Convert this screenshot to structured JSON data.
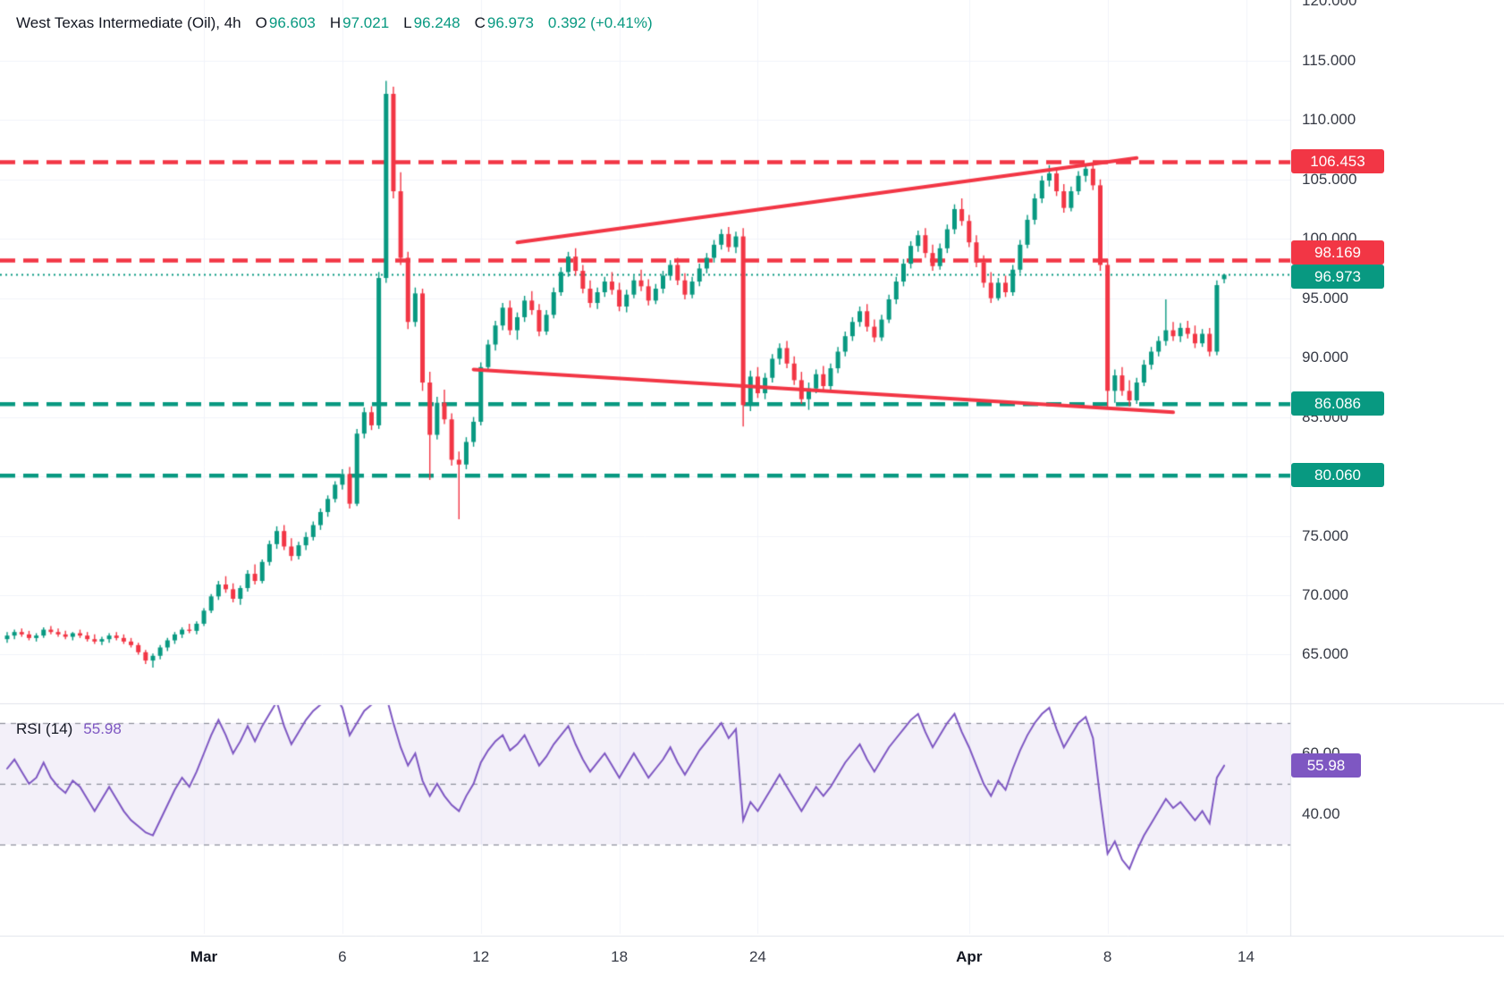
{
  "header": {
    "title": "West Texas Intermediate (Oil), 4h",
    "o_label": "O",
    "open": "96.603",
    "h_label": "H",
    "high": "97.021",
    "l_label": "L",
    "low": "96.248",
    "c_label": "C",
    "close": "96.973",
    "change": "0.392 (+0.41%)"
  },
  "colors": {
    "up": "#089981",
    "down": "#f23645",
    "resistance": "#f23645",
    "support": "#089981",
    "rsi": "#7e57c2",
    "grid": "#f0f3fa",
    "separator": "#e0e3eb",
    "axis_text": "#363a45"
  },
  "chart_data": {
    "type": "candlestick",
    "title": "West Texas Intermediate (Oil), 4h",
    "price_axis": {
      "min": 61.8,
      "max": 120.1,
      "tick_interval": 5,
      "ticks": [
        {
          "value": 120,
          "label": "120.000"
        },
        {
          "value": 115,
          "label": "115.000"
        },
        {
          "value": 110,
          "label": "110.000"
        },
        {
          "value": 105,
          "label": "105.000"
        },
        {
          "value": 100,
          "label": "100.000"
        },
        {
          "value": 95,
          "label": "95.000"
        },
        {
          "value": 90,
          "label": "90.000"
        },
        {
          "value": 85,
          "label": "85.000"
        },
        {
          "value": 80,
          "label": "80.000"
        },
        {
          "value": 75,
          "label": "75.000"
        },
        {
          "value": 70,
          "label": "70.000"
        },
        {
          "value": 65,
          "label": "65.000"
        }
      ]
    },
    "candles": [
      [
        66.3,
        66.9,
        66.0,
        66.6
      ],
      [
        66.6,
        67.1,
        66.3,
        66.9
      ],
      [
        66.9,
        67.2,
        66.5,
        66.7
      ],
      [
        66.7,
        67.0,
        66.2,
        66.4
      ],
      [
        66.4,
        66.8,
        66.1,
        66.6
      ],
      [
        66.6,
        67.3,
        66.4,
        67.1
      ],
      [
        67.1,
        67.4,
        66.7,
        66.9
      ],
      [
        66.9,
        67.2,
        66.5,
        66.7
      ],
      [
        66.7,
        67.0,
        66.3,
        66.5
      ],
      [
        66.5,
        66.9,
        66.2,
        66.8
      ],
      [
        66.8,
        67.1,
        66.4,
        66.6
      ],
      [
        66.6,
        66.9,
        66.1,
        66.3
      ],
      [
        66.3,
        66.7,
        65.9,
        66.1
      ],
      [
        66.1,
        66.5,
        65.8,
        66.3
      ],
      [
        66.3,
        66.8,
        66.0,
        66.6
      ],
      [
        66.6,
        66.9,
        66.2,
        66.4
      ],
      [
        66.4,
        66.7,
        65.9,
        66.1
      ],
      [
        66.1,
        66.4,
        65.6,
        65.8
      ],
      [
        65.8,
        66.0,
        65.0,
        65.2
      ],
      [
        65.2,
        65.4,
        64.2,
        64.5
      ],
      [
        64.5,
        65.1,
        63.9,
        64.9
      ],
      [
        64.9,
        65.8,
        64.6,
        65.6
      ],
      [
        65.6,
        66.4,
        65.3,
        66.2
      ],
      [
        66.2,
        66.9,
        65.9,
        66.7
      ],
      [
        66.7,
        67.3,
        66.4,
        67.1
      ],
      [
        67.1,
        67.6,
        66.8,
        67.0
      ],
      [
        67.0,
        67.8,
        66.7,
        67.6
      ],
      [
        67.6,
        68.9,
        67.4,
        68.7
      ],
      [
        68.7,
        70.1,
        68.5,
        69.9
      ],
      [
        69.9,
        71.2,
        69.6,
        70.9
      ],
      [
        70.9,
        71.6,
        70.2,
        70.5
      ],
      [
        70.5,
        71.0,
        69.4,
        69.7
      ],
      [
        69.7,
        70.8,
        69.2,
        70.6
      ],
      [
        70.6,
        72.1,
        70.3,
        71.8
      ],
      [
        71.8,
        72.6,
        70.9,
        71.2
      ],
      [
        71.2,
        73.0,
        71.0,
        72.8
      ],
      [
        72.8,
        74.6,
        72.5,
        74.3
      ],
      [
        74.3,
        75.8,
        73.9,
        75.4
      ],
      [
        75.4,
        75.9,
        73.8,
        74.1
      ],
      [
        74.1,
        74.8,
        72.9,
        73.3
      ],
      [
        73.3,
        74.5,
        73.0,
        74.2
      ],
      [
        74.2,
        75.3,
        73.8,
        74.9
      ],
      [
        74.9,
        76.2,
        74.6,
        75.9
      ],
      [
        75.9,
        77.3,
        75.5,
        77.0
      ],
      [
        77.0,
        78.4,
        76.6,
        78.1
      ],
      [
        78.1,
        79.6,
        77.8,
        79.3
      ],
      [
        79.3,
        80.6,
        78.9,
        80.2
      ],
      [
        80.2,
        80.8,
        77.3,
        77.7
      ],
      [
        77.7,
        84.0,
        77.5,
        83.6
      ],
      [
        83.6,
        85.8,
        83.2,
        85.4
      ],
      [
        85.4,
        85.9,
        83.9,
        84.3
      ],
      [
        84.3,
        97.2,
        84.0,
        96.7
      ],
      [
        96.7,
        113.3,
        96.3,
        112.2
      ],
      [
        112.2,
        112.8,
        103.4,
        104.0
      ],
      [
        104.0,
        105.6,
        97.8,
        98.4
      ],
      [
        98.4,
        98.9,
        92.4,
        93.0
      ],
      [
        93.0,
        95.9,
        92.6,
        95.4
      ],
      [
        95.4,
        95.8,
        87.2,
        87.9
      ],
      [
        87.9,
        88.8,
        79.7,
        83.5
      ],
      [
        83.5,
        86.7,
        83.1,
        86.2
      ],
      [
        86.2,
        87.3,
        84.4,
        84.8
      ],
      [
        84.8,
        85.3,
        80.9,
        81.4
      ],
      [
        81.4,
        82.1,
        76.4,
        81.0
      ],
      [
        81.0,
        83.3,
        80.6,
        82.9
      ],
      [
        82.9,
        85.0,
        82.5,
        84.6
      ],
      [
        84.6,
        89.6,
        84.3,
        89.2
      ],
      [
        89.2,
        91.5,
        88.8,
        91.1
      ],
      [
        91.1,
        93.1,
        90.6,
        92.7
      ],
      [
        92.7,
        94.6,
        92.3,
        94.2
      ],
      [
        94.2,
        94.8,
        91.9,
        92.3
      ],
      [
        92.3,
        93.8,
        91.5,
        93.4
      ],
      [
        93.4,
        95.2,
        93.0,
        94.8
      ],
      [
        94.8,
        95.6,
        93.6,
        94.0
      ],
      [
        94.0,
        94.5,
        91.8,
        92.2
      ],
      [
        92.2,
        94.0,
        91.9,
        93.6
      ],
      [
        93.6,
        95.9,
        93.3,
        95.5
      ],
      [
        95.5,
        97.6,
        95.2,
        97.2
      ],
      [
        97.2,
        98.9,
        96.8,
        98.5
      ],
      [
        98.5,
        99.2,
        96.9,
        97.3
      ],
      [
        97.3,
        97.8,
        95.4,
        95.8
      ],
      [
        95.8,
        96.5,
        94.2,
        94.6
      ],
      [
        94.6,
        95.9,
        94.1,
        95.5
      ],
      [
        95.5,
        96.8,
        95.1,
        96.4
      ],
      [
        96.4,
        97.2,
        95.3,
        95.7
      ],
      [
        95.7,
        96.3,
        93.9,
        94.3
      ],
      [
        94.3,
        95.7,
        93.8,
        95.3
      ],
      [
        95.3,
        96.9,
        95.0,
        96.5
      ],
      [
        96.5,
        97.4,
        95.6,
        96.0
      ],
      [
        96.0,
        96.6,
        94.4,
        94.8
      ],
      [
        94.8,
        96.2,
        94.5,
        95.8
      ],
      [
        95.8,
        97.3,
        95.4,
        96.9
      ],
      [
        96.9,
        98.2,
        96.5,
        97.8
      ],
      [
        97.8,
        98.4,
        96.1,
        96.5
      ],
      [
        96.5,
        97.1,
        94.9,
        95.3
      ],
      [
        95.3,
        96.8,
        95.0,
        96.4
      ],
      [
        96.4,
        97.9,
        96.0,
        97.5
      ],
      [
        97.5,
        98.8,
        97.1,
        98.4
      ],
      [
        98.4,
        99.9,
        98.0,
        99.5
      ],
      [
        99.5,
        100.8,
        99.1,
        100.4
      ],
      [
        100.4,
        101.0,
        98.9,
        99.3
      ],
      [
        99.3,
        100.6,
        98.8,
        100.2
      ],
      [
        100.2,
        100.9,
        84.2,
        86.0
      ],
      [
        86.0,
        88.9,
        85.5,
        88.4
      ],
      [
        88.4,
        89.2,
        86.6,
        87.0
      ],
      [
        87.0,
        88.7,
        86.5,
        88.3
      ],
      [
        88.3,
        90.3,
        87.9,
        89.9
      ],
      [
        89.9,
        91.2,
        89.4,
        90.8
      ],
      [
        90.8,
        91.4,
        89.1,
        89.5
      ],
      [
        89.5,
        90.1,
        87.7,
        88.1
      ],
      [
        88.1,
        88.8,
        86.1,
        86.5
      ],
      [
        86.5,
        87.9,
        85.6,
        87.4
      ],
      [
        87.4,
        89.0,
        87.0,
        88.6
      ],
      [
        88.6,
        89.3,
        87.2,
        87.6
      ],
      [
        87.6,
        89.5,
        87.3,
        89.1
      ],
      [
        89.1,
        90.9,
        88.7,
        90.5
      ],
      [
        90.5,
        92.2,
        90.1,
        91.8
      ],
      [
        91.8,
        93.4,
        91.4,
        93.0
      ],
      [
        93.0,
        94.3,
        92.6,
        93.9
      ],
      [
        93.9,
        94.5,
        92.2,
        92.6
      ],
      [
        92.6,
        93.2,
        91.3,
        91.7
      ],
      [
        91.7,
        93.6,
        91.4,
        93.2
      ],
      [
        93.2,
        95.3,
        92.9,
        94.9
      ],
      [
        94.9,
        96.8,
        94.5,
        96.4
      ],
      [
        96.4,
        98.3,
        96.0,
        97.9
      ],
      [
        97.9,
        99.8,
        97.5,
        99.4
      ],
      [
        99.4,
        100.7,
        98.9,
        100.3
      ],
      [
        100.3,
        100.9,
        98.4,
        98.8
      ],
      [
        98.8,
        99.5,
        97.3,
        97.7
      ],
      [
        97.7,
        99.6,
        97.4,
        99.2
      ],
      [
        99.2,
        101.2,
        98.8,
        100.8
      ],
      [
        100.8,
        102.9,
        100.4,
        102.5
      ],
      [
        102.5,
        103.4,
        101.1,
        101.5
      ],
      [
        101.5,
        102.0,
        99.3,
        99.7
      ],
      [
        99.7,
        100.3,
        97.6,
        98.0
      ],
      [
        98.0,
        98.6,
        95.9,
        96.3
      ],
      [
        96.3,
        97.2,
        94.6,
        95.0
      ],
      [
        95.0,
        96.7,
        94.8,
        96.3
      ],
      [
        96.3,
        96.9,
        95.1,
        95.5
      ],
      [
        95.5,
        97.8,
        95.2,
        97.4
      ],
      [
        97.4,
        99.9,
        97.1,
        99.5
      ],
      [
        99.5,
        102.0,
        99.2,
        101.6
      ],
      [
        101.6,
        103.8,
        101.2,
        103.4
      ],
      [
        103.4,
        105.3,
        103.0,
        104.9
      ],
      [
        104.9,
        106.2,
        104.4,
        105.5
      ],
      [
        105.5,
        106.0,
        103.6,
        104.0
      ],
      [
        104.0,
        104.6,
        102.2,
        102.6
      ],
      [
        102.6,
        104.4,
        102.3,
        104.0
      ],
      [
        104.0,
        105.7,
        103.7,
        105.3
      ],
      [
        105.3,
        106.3,
        104.8,
        105.9
      ],
      [
        105.9,
        106.4,
        104.1,
        104.5
      ],
      [
        104.5,
        105.0,
        97.3,
        97.8
      ],
      [
        97.8,
        98.3,
        85.8,
        87.2
      ],
      [
        87.2,
        89.0,
        86.2,
        88.5
      ],
      [
        88.5,
        89.2,
        86.8,
        87.2
      ],
      [
        87.2,
        88.1,
        85.9,
        86.4
      ],
      [
        86.4,
        88.3,
        86.1,
        87.9
      ],
      [
        87.9,
        89.8,
        87.6,
        89.4
      ],
      [
        89.4,
        90.9,
        89.0,
        90.5
      ],
      [
        90.5,
        91.8,
        90.1,
        91.4
      ],
      [
        91.4,
        94.9,
        91.0,
        92.3
      ],
      [
        92.3,
        93.0,
        91.4,
        91.8
      ],
      [
        91.8,
        92.9,
        91.3,
        92.5
      ],
      [
        92.5,
        93.1,
        91.6,
        92.0
      ],
      [
        92.0,
        92.7,
        90.8,
        91.2
      ],
      [
        91.2,
        92.4,
        90.9,
        92.0
      ],
      [
        92.0,
        92.5,
        90.1,
        90.5
      ],
      [
        90.5,
        96.5,
        90.2,
        96.1
      ],
      [
        96.603,
        97.021,
        96.248,
        96.973
      ]
    ],
    "levels": [
      {
        "price": 106.453,
        "label": "106.453",
        "color": "#f23645",
        "style": "dashed",
        "label_offset": 0
      },
      {
        "price": 98.169,
        "label": "98.169",
        "color": "#f23645",
        "style": "dashed",
        "label_offset": -9
      },
      {
        "price": 96.973,
        "label": "96.973",
        "color": "#089981",
        "style": "dotted",
        "label_offset": 3,
        "is_last_price": true
      },
      {
        "price": 86.086,
        "label": "86.086",
        "color": "#089981",
        "style": "dashed",
        "label_offset": 0
      },
      {
        "price": 80.06,
        "label": "80.060",
        "color": "#089981",
        "style": "dashed",
        "label_offset": 0
      }
    ],
    "trendlines": [
      {
        "from": {
          "index": 70,
          "price": 99.7
        },
        "to": {
          "index": 155,
          "price": 106.8
        },
        "color": "#f23645",
        "width": 4
      },
      {
        "from": {
          "index": 64,
          "price": 89.0
        },
        "to": {
          "index": 160,
          "price": 85.4
        },
        "color": "#f23645",
        "width": 4
      }
    ],
    "time_labels": [
      {
        "label": "Mar",
        "index": 27,
        "bold": true
      },
      {
        "label": "6",
        "index": 46,
        "bold": false
      },
      {
        "label": "12",
        "index": 65,
        "bold": false
      },
      {
        "label": "18",
        "index": 84,
        "bold": false
      },
      {
        "label": "24",
        "index": 103,
        "bold": false
      },
      {
        "label": "Apr",
        "index": 132,
        "bold": true
      },
      {
        "label": "8",
        "index": 151,
        "bold": false
      },
      {
        "label": "14",
        "index": 170,
        "bold": false
      }
    ],
    "rsi": {
      "label": "RSI (14)",
      "value": 55.98,
      "value_label": "55.98",
      "color": "#7e57c2",
      "bands": [
        70,
        50,
        30
      ],
      "axis_ticks": [
        {
          "value": 60,
          "label": "60.00"
        },
        {
          "value": 40,
          "label": "40.00"
        }
      ],
      "values": [
        55,
        58,
        54,
        50,
        52,
        57,
        52,
        49,
        47,
        51,
        49,
        45,
        41,
        45,
        49,
        45,
        41,
        38,
        36,
        34,
        33,
        38,
        43,
        48,
        52,
        49,
        54,
        60,
        66,
        71,
        66,
        60,
        64,
        69,
        64,
        69,
        73,
        77,
        69,
        63,
        67,
        71,
        74,
        76,
        78,
        79,
        75,
        66,
        70,
        74,
        76,
        78,
        79,
        70,
        62,
        56,
        60,
        51,
        46,
        50,
        46,
        43,
        41,
        46,
        50,
        57,
        61,
        64,
        66,
        61,
        63,
        66,
        61,
        56,
        59,
        63,
        66,
        69,
        63,
        58,
        54,
        57,
        60,
        56,
        52,
        56,
        60,
        56,
        52,
        55,
        58,
        62,
        57,
        53,
        57,
        61,
        64,
        67,
        70,
        65,
        68,
        38,
        44,
        41,
        45,
        49,
        53,
        49,
        45,
        41,
        45,
        49,
        46,
        49,
        53,
        57,
        60,
        63,
        58,
        54,
        58,
        62,
        65,
        68,
        71,
        73,
        67,
        62,
        66,
        70,
        73,
        67,
        62,
        56,
        50,
        46,
        51,
        48,
        55,
        61,
        66,
        70,
        73,
        75,
        68,
        62,
        66,
        70,
        72,
        65,
        45,
        27,
        31,
        25,
        22,
        28,
        33,
        37,
        41,
        45,
        42,
        44,
        41,
        38,
        41,
        37,
        52,
        55.98
      ]
    }
  }
}
